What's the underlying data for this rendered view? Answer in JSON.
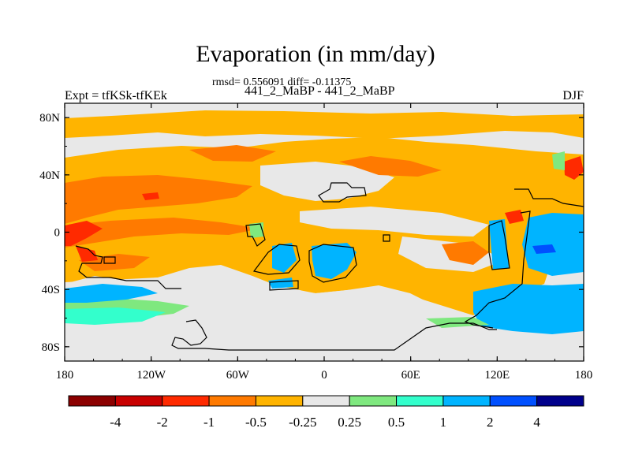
{
  "chart_data": {
    "type": "heatmap",
    "title": "Evaporation (in mm/day)",
    "stats_line": "rmsd= 0.556091 diff= -0.11375",
    "experiment_line": "441_2_MaBP - 441_2_MaBP",
    "left_label": "Expt = tfKSk-tfKEk",
    "right_label": "DJF",
    "x_ticks": [
      "180",
      "120W",
      "60W",
      "0",
      "60E",
      "120E",
      "180"
    ],
    "y_ticks": [
      "80N",
      "40N",
      "0",
      "40S",
      "80S"
    ],
    "colorbar": {
      "levels": [
        "-4",
        "-2",
        "-1",
        "-0.5",
        "-0.25",
        "0.25",
        "0.5",
        "1",
        "2",
        "4"
      ],
      "colors": [
        "#8b0000",
        "#c80000",
        "#ff2a00",
        "#ff7a00",
        "#ffb400",
        "#e8e8e8",
        "#7fe87f",
        "#33ffcc",
        "#00b4ff",
        "#0050ff",
        "#00008b"
      ]
    }
  },
  "colors": {
    "neutral": "#e8e8e8",
    "light_orange": "#ffb400",
    "dark_orange": "#ff7a00",
    "red": "#ff2a00",
    "cyan": "#00b4ff",
    "blue": "#0050ff",
    "green": "#7fe87f",
    "teal": "#33ffcc"
  }
}
